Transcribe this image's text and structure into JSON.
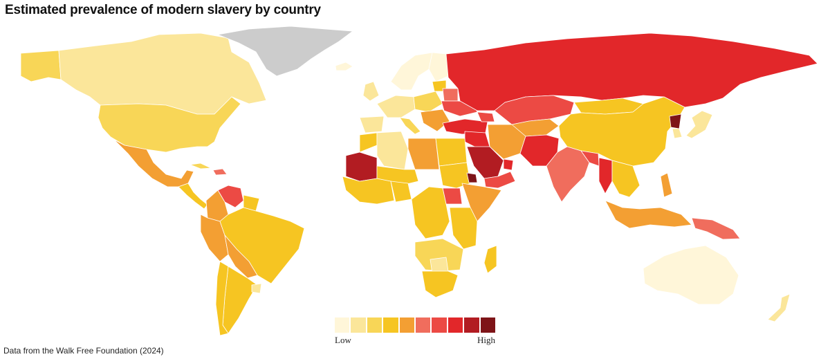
{
  "title": "Estimated prevalence of modern slavery by country",
  "source": "Data from the Walk Free Foundation (2024)",
  "legend": {
    "low_label": "Low",
    "high_label": "High",
    "colors": [
      "#fff6d9",
      "#fbe69a",
      "#f8d657",
      "#f6c522",
      "#f39f33",
      "#f06d5d",
      "#ec4a44",
      "#e2272a",
      "#b21c22",
      "#7e1418"
    ],
    "no_data_color": "#cccccc"
  },
  "regions": {
    "alaska": 2,
    "canada": 1,
    "usa": 2,
    "greenland": -1,
    "mexico": 4,
    "central_america": 3,
    "cuba": 2,
    "caribbean_islands": 5,
    "venezuela": 6,
    "colombia": 4,
    "guianas": 3,
    "ecuador_peru": 4,
    "brazil": 3,
    "bolivia_paraguay": 4,
    "argentina": 3,
    "chile": 3,
    "uruguay": 1,
    "iceland": 0,
    "uk_ireland": 1,
    "scandinavia": 0,
    "finland": 0,
    "western_europe": 1,
    "iberia": 1,
    "italy": 2,
    "central_europe": 2,
    "balkans": 4,
    "baltics": 3,
    "belarus": 5,
    "ukraine": 6,
    "turkey": 7,
    "caucasus": 6,
    "russia": 7,
    "kazakhstan": 6,
    "central_asia": 4,
    "mongolia": 3,
    "china": 3,
    "north_korea": 9,
    "south_korea": 1,
    "japan": 1,
    "iran": 4,
    "iraq_syria": 7,
    "afghanistan_pakistan": 7,
    "saudi_arabia": 8,
    "yemen_oman": 6,
    "gulf_states": 7,
    "india": 5,
    "nepal_bangladesh": 6,
    "myanmar": 7,
    "thailand_indochina": 3,
    "philippines": 4,
    "malaysia_indonesia": 4,
    "papua_new_guinea": 5,
    "morocco": 3,
    "algeria": 1,
    "libya": 4,
    "egypt": 3,
    "mauritania": 8,
    "west_africa": 3,
    "nigeria": 3,
    "sahel_states": 3,
    "sudan": 3,
    "south_sudan": 6,
    "eritrea": 9,
    "horn_of_africa": 4,
    "central_africa": 3,
    "east_africa": 3,
    "southern_africa": 2,
    "botswana": 1,
    "south_africa": 3,
    "madagascar": 3,
    "australia": 0,
    "new_zealand": 1
  }
}
